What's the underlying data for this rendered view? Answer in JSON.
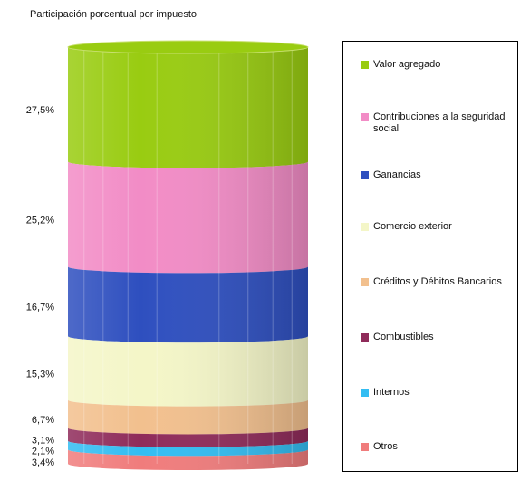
{
  "chart_data": {
    "type": "cylinder",
    "title": "Participación porcentual por impuesto",
    "categories": [
      "Valor agregado",
      "Contribuciones a la seguridad social",
      "Ganancias",
      "Comercio exterior",
      "Créditos y Débitos Bancarios",
      "Combustibles",
      "Internos",
      "Otros"
    ],
    "values": [
      27.5,
      25.2,
      16.7,
      15.3,
      6.7,
      3.1,
      2.1,
      3.4
    ],
    "value_labels": [
      "27,5%",
      "25,2%",
      "16,7%",
      "15,3%",
      "6,7%",
      "3,1%",
      "2,1%",
      "3,4%"
    ],
    "colors": [
      "#99cc11",
      "#f28cc6",
      "#2e4fbf",
      "#f4f6c8",
      "#f2c08e",
      "#8f2b5a",
      "#33bdf2",
      "#f07c7c"
    ],
    "legend": "right"
  }
}
